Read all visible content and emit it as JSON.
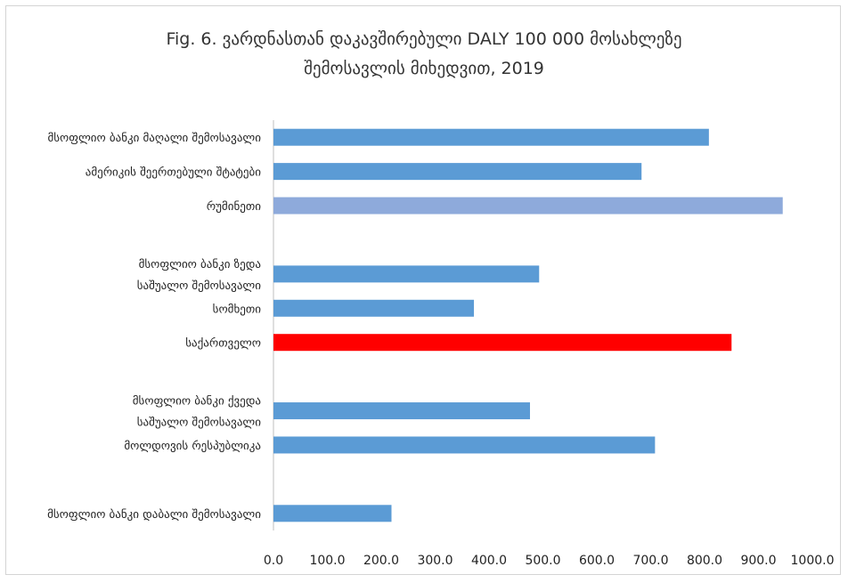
{
  "chart_data": {
    "type": "bar",
    "orientation": "horizontal",
    "title_line1": "Fig. 6. ვარდნასთან დაკავშირებული DALY 100 000 მოსახლეზე",
    "title_line2": "შემოსავლის მიხედვით, 2019",
    "xlim": [
      0,
      1000
    ],
    "xticks": [
      "0.0",
      "100.0",
      "200.0",
      "300.0",
      "400.0",
      "500.0",
      "600.0",
      "700.0",
      "800.0",
      "900.0",
      "1000.0"
    ],
    "grid": false,
    "legend": "none",
    "categories": [
      {
        "lines": [
          "მსოფლიო ბანკი მაღალი შემოსავალი"
        ],
        "value": 808,
        "color": "#5b9bd5"
      },
      {
        "lines": [
          "ამერიკის შეერთებული შტატები"
        ],
        "value": 683,
        "color": "#5b9bd5"
      },
      {
        "lines": [
          "რუმინეთი"
        ],
        "value": 945,
        "color": "#8eaadb"
      },
      {
        "lines": [],
        "value": null,
        "color": "#5b9bd5"
      },
      {
        "lines": [
          "მსოფლიო ბანკი ზედა",
          "საშუალო შემოსავალი"
        ],
        "value": 493,
        "color": "#5b9bd5"
      },
      {
        "lines": [
          "სომხეთი"
        ],
        "value": 372,
        "color": "#5b9bd5"
      },
      {
        "lines": [
          "საქართველო"
        ],
        "value": 850,
        "color": "#ff0000"
      },
      {
        "lines": [],
        "value": null,
        "color": "#5b9bd5"
      },
      {
        "lines": [
          "მსოფლიო ბანკი ქვედა",
          "საშუალო შემოსავალი"
        ],
        "value": 476,
        "color": "#5b9bd5"
      },
      {
        "lines": [
          "მოლდოვის რესპუბლიკა"
        ],
        "value": 708,
        "color": "#5b9bd5"
      },
      {
        "lines": [],
        "value": null,
        "color": "#5b9bd5"
      },
      {
        "lines": [
          "მსოფლიო ბანკი დაბალი შემოსავალი"
        ],
        "value": 219,
        "color": "#5b9bd5"
      }
    ],
    "axis_color": "#bfbfbf"
  }
}
